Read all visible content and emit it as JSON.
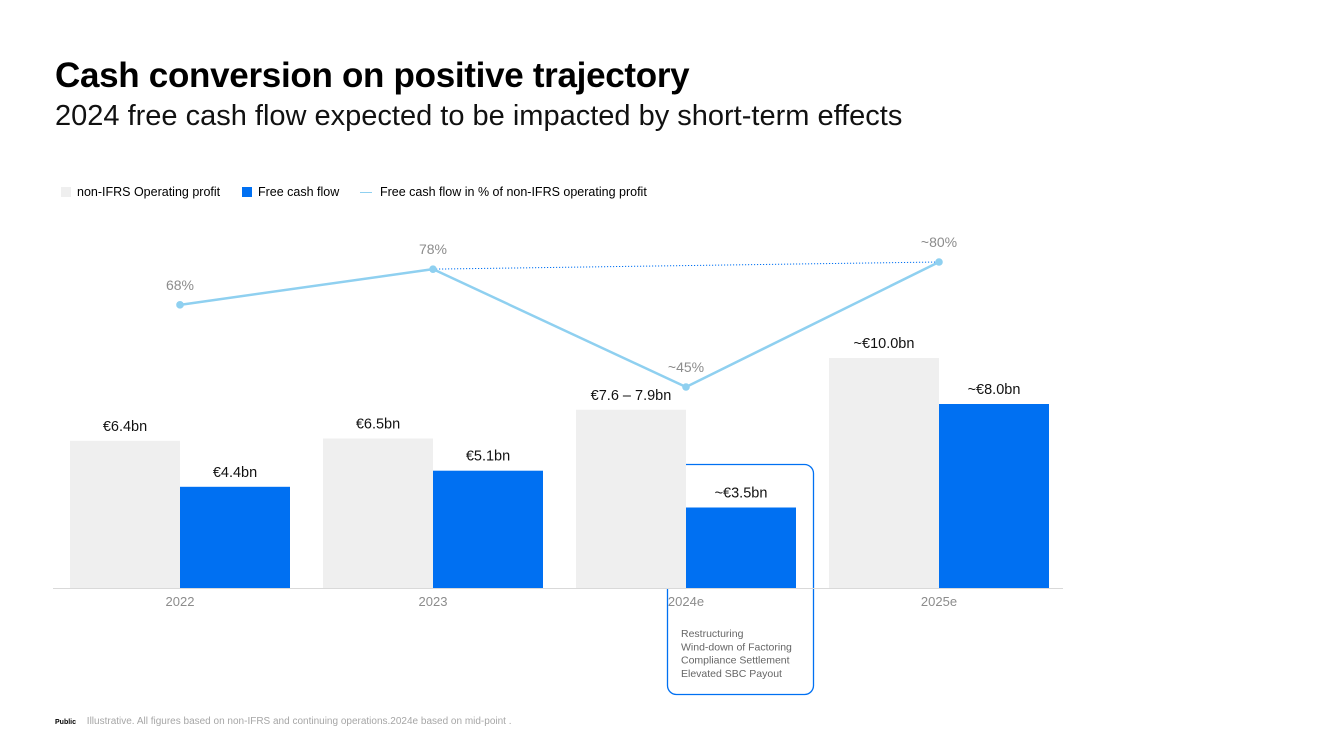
{
  "title": "Cash conversion on positive trajectory",
  "subtitle": "2024 free cash flow expected to be impacted by short-term effects",
  "legend": {
    "operating_profit": "non-IFRS Operating profit",
    "free_cash_flow": "Free cash flow",
    "fcf_pct": "Free cash flow in % of non-IFRS operating profit"
  },
  "colors": {
    "operating_profit": "#efefef",
    "free_cash_flow": "#0070f2",
    "line": "#8fd0f0",
    "box_border": "#0070f2",
    "axis_label": "#8c8c8c"
  },
  "chart_data": {
    "type": "bar",
    "title": "Cash conversion on positive trajectory",
    "categories": [
      "2022",
      "2023",
      "2024e",
      "2025e"
    ],
    "series": [
      {
        "name": "non-IFRS Operating profit",
        "values": [
          6.4,
          6.5,
          7.75,
          10.0
        ],
        "labels": [
          "€6.4bn",
          "€6.5bn",
          "€7.6 – 7.9bn",
          "~€10.0bn"
        ]
      },
      {
        "name": "Free cash flow",
        "values": [
          4.4,
          5.1,
          3.5,
          8.0
        ],
        "labels": [
          "€4.4bn",
          "€5.1bn",
          "~€3.5bn",
          "~€8.0bn"
        ]
      }
    ],
    "line_series": {
      "name": "Free cash flow in % of non-IFRS operating profit",
      "values": [
        68,
        78,
        45,
        80
      ],
      "labels": [
        "68%",
        "78%",
        "~45%",
        "~80%"
      ]
    },
    "ylim": [
      0,
      10
    ],
    "xlabel": "",
    "ylabel": ""
  },
  "callout": {
    "items": [
      "Restructuring",
      "Wind-down of Factoring",
      "Compliance Settlement",
      "Elevated SBC Payout"
    ]
  },
  "footer": {
    "tag": "Public",
    "note": "Illustrative. All figures based on non-IFRS and continuing operations.2024e based on mid-point ."
  }
}
